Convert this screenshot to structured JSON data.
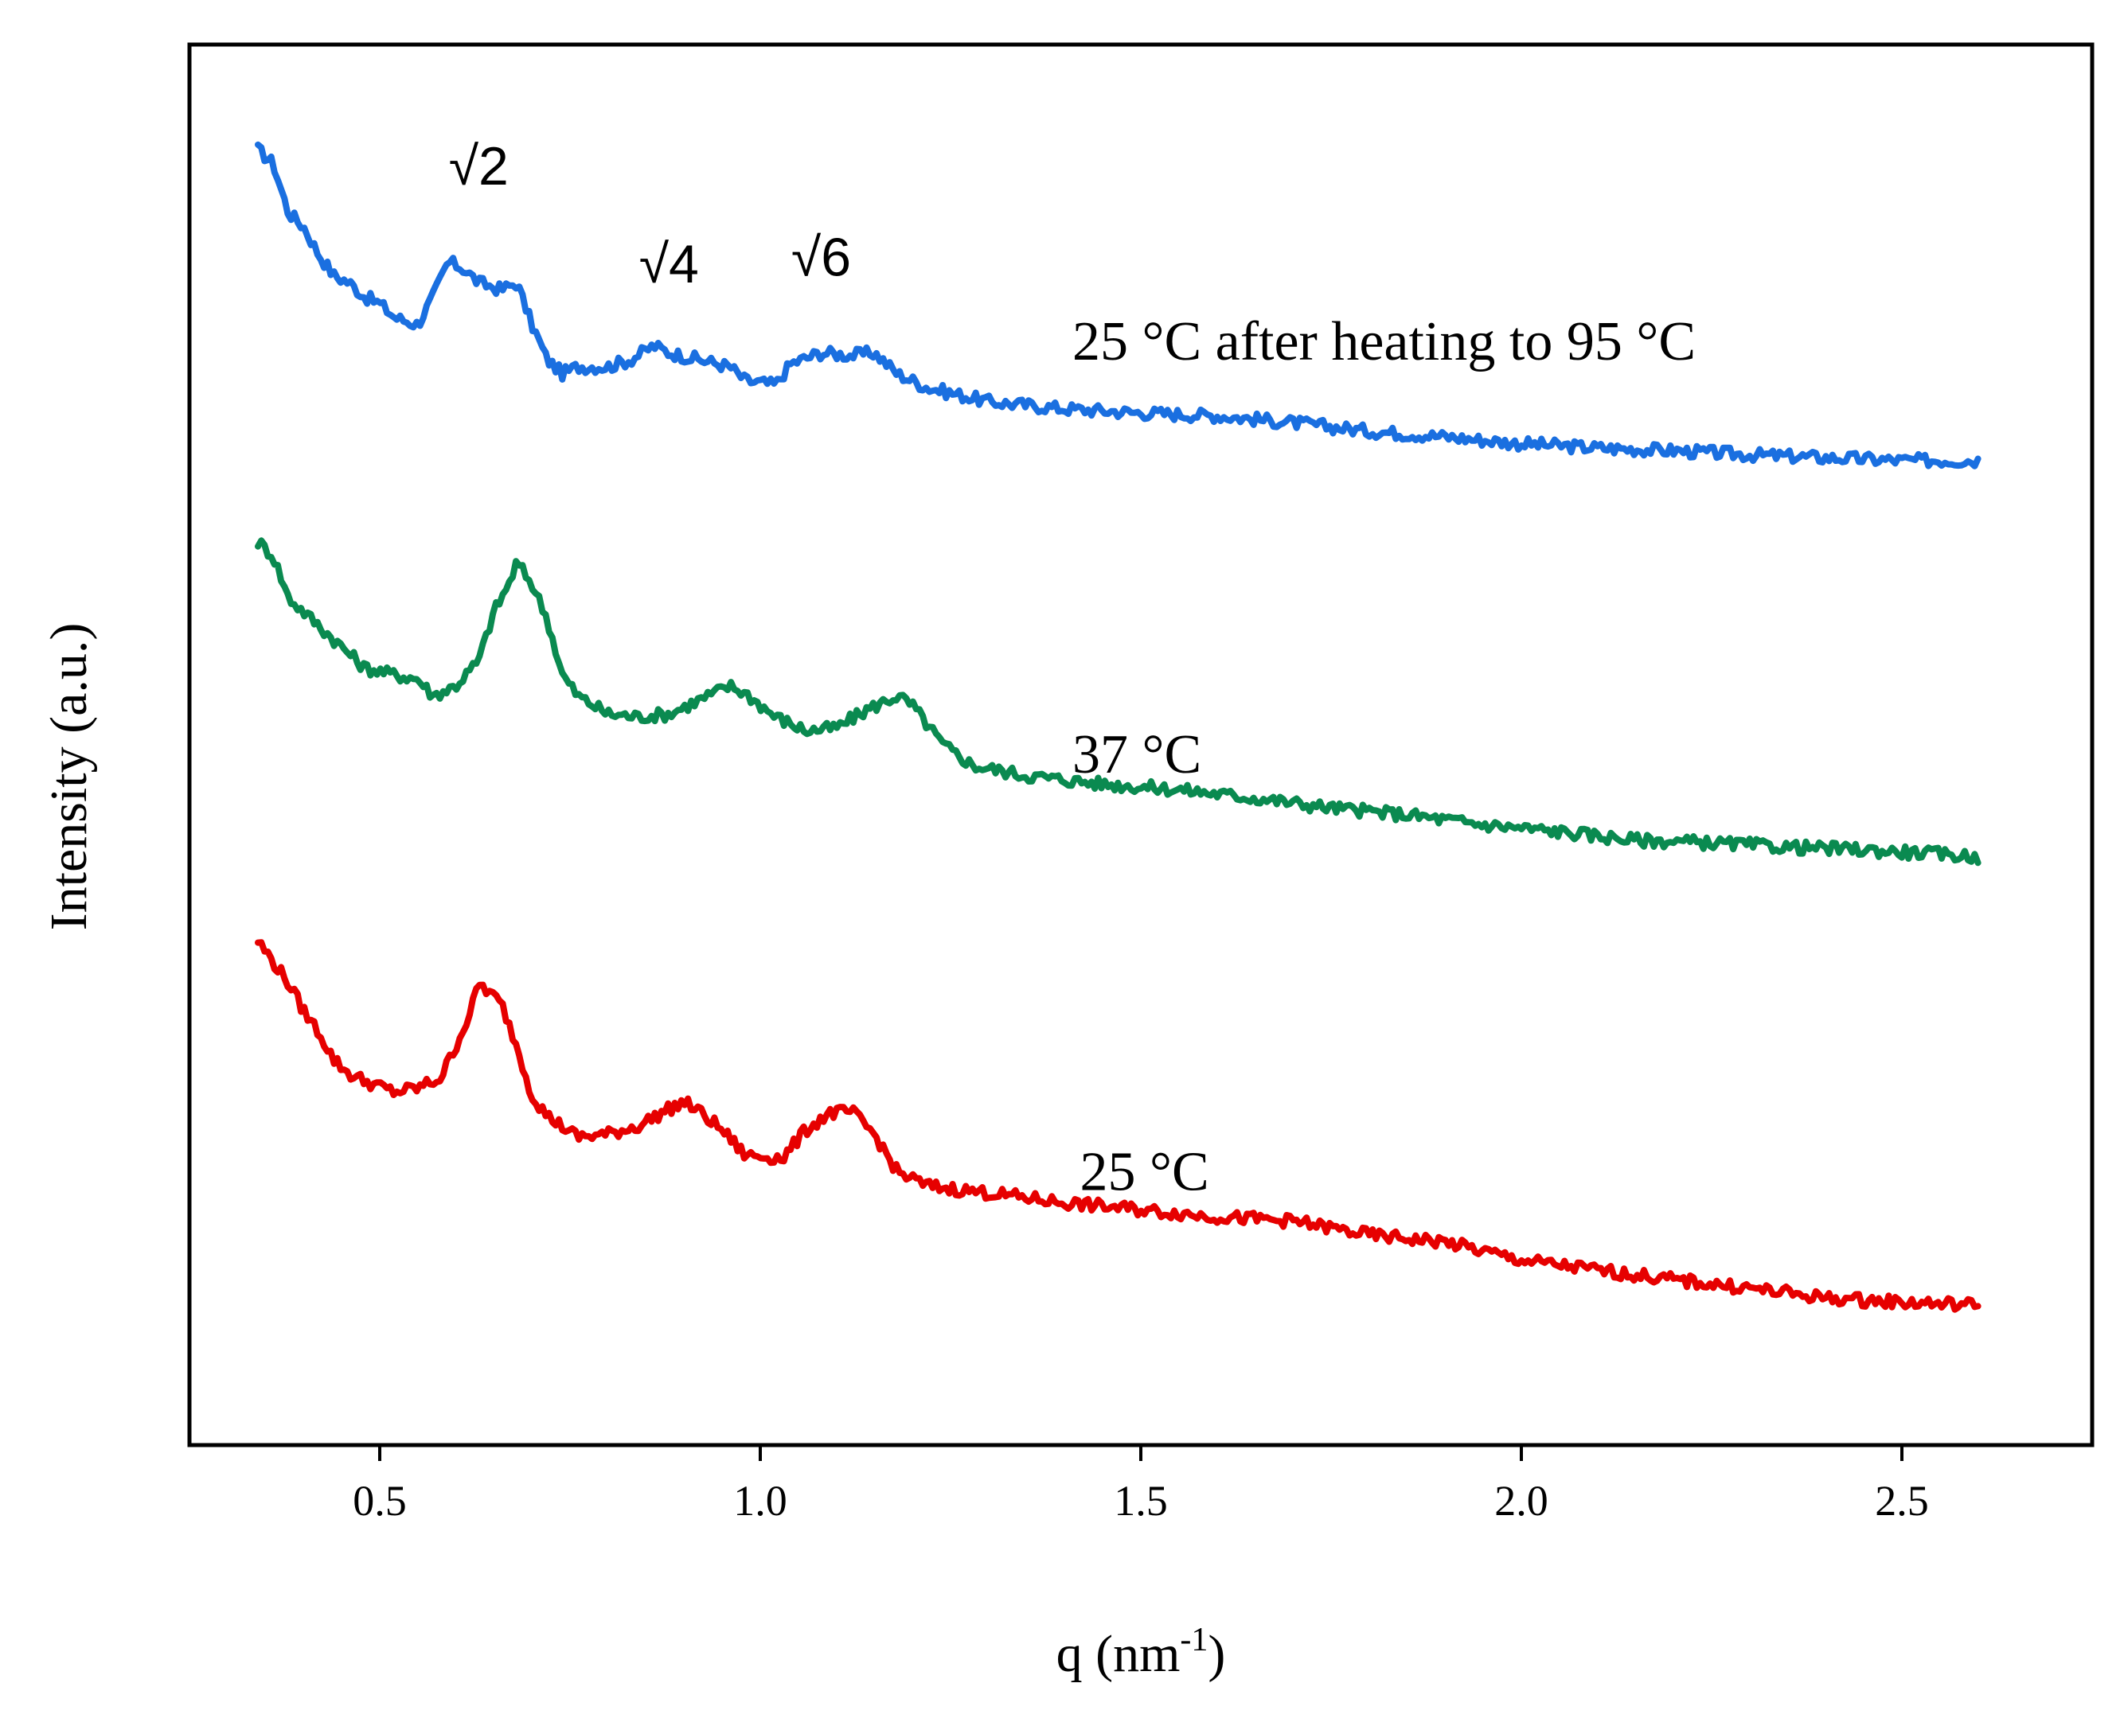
{
  "chart_data": {
    "type": "line",
    "title": "",
    "xlabel_base": "q (nm",
    "xlabel_sup": "-1",
    "xlabel_tail": ")",
    "ylabel": "Intensity (a.u.)",
    "xlim": [
      0.25,
      2.75
    ],
    "ylim": [
      0,
      10
    ],
    "xticks": [
      0.5,
      1.0,
      1.5,
      2.0,
      2.5
    ],
    "xtick_labels": [
      "0.5",
      "1.0",
      "1.5",
      "2.0",
      "2.5"
    ],
    "yticks": [],
    "grid": false,
    "series": [
      {
        "name": "25 °C after heating to 95 °C",
        "color": "#1a6fe0",
        "points": [
          [
            0.34,
            9.25
          ],
          [
            0.36,
            9.15
          ],
          [
            0.38,
            8.8
          ],
          [
            0.4,
            8.7
          ],
          [
            0.42,
            8.5
          ],
          [
            0.44,
            8.35
          ],
          [
            0.46,
            8.3
          ],
          [
            0.48,
            8.2
          ],
          [
            0.5,
            8.15
          ],
          [
            0.52,
            8.05
          ],
          [
            0.55,
            8.0
          ],
          [
            0.57,
            8.2
          ],
          [
            0.59,
            8.45
          ],
          [
            0.61,
            8.4
          ],
          [
            0.63,
            8.3
          ],
          [
            0.66,
            8.25
          ],
          [
            0.68,
            8.3
          ],
          [
            0.7,
            8.0
          ],
          [
            0.72,
            7.75
          ],
          [
            0.74,
            7.65
          ],
          [
            0.76,
            7.7
          ],
          [
            0.8,
            7.7
          ],
          [
            0.83,
            7.75
          ],
          [
            0.86,
            7.85
          ],
          [
            0.88,
            7.8
          ],
          [
            0.92,
            7.75
          ],
          [
            0.96,
            7.7
          ],
          [
            0.98,
            7.6
          ],
          [
            1.02,
            7.57
          ],
          [
            1.04,
            7.72
          ],
          [
            1.08,
            7.8
          ],
          [
            1.12,
            7.78
          ],
          [
            1.15,
            7.8
          ],
          [
            1.18,
            7.65
          ],
          [
            1.22,
            7.55
          ],
          [
            1.26,
            7.5
          ],
          [
            1.3,
            7.45
          ],
          [
            1.4,
            7.4
          ],
          [
            1.5,
            7.37
          ],
          [
            1.6,
            7.35
          ],
          [
            1.7,
            7.3
          ],
          [
            1.8,
            7.24
          ],
          [
            1.9,
            7.2
          ],
          [
            2.0,
            7.15
          ],
          [
            2.1,
            7.12
          ],
          [
            2.2,
            7.1
          ],
          [
            2.3,
            7.07
          ],
          [
            2.4,
            7.05
          ],
          [
            2.5,
            7.03
          ],
          [
            2.6,
            7.03
          ]
        ]
      },
      {
        "name": "37 °C",
        "color": "#0a8a50",
        "points": [
          [
            0.34,
            6.45
          ],
          [
            0.36,
            6.35
          ],
          [
            0.38,
            6.05
          ],
          [
            0.4,
            5.95
          ],
          [
            0.42,
            5.85
          ],
          [
            0.44,
            5.75
          ],
          [
            0.46,
            5.65
          ],
          [
            0.48,
            5.55
          ],
          [
            0.52,
            5.5
          ],
          [
            0.55,
            5.47
          ],
          [
            0.57,
            5.35
          ],
          [
            0.6,
            5.42
          ],
          [
            0.63,
            5.6
          ],
          [
            0.65,
            5.95
          ],
          [
            0.67,
            6.15
          ],
          [
            0.68,
            6.3
          ],
          [
            0.7,
            6.15
          ],
          [
            0.72,
            5.9
          ],
          [
            0.74,
            5.5
          ],
          [
            0.76,
            5.35
          ],
          [
            0.8,
            5.22
          ],
          [
            0.84,
            5.2
          ],
          [
            0.88,
            5.22
          ],
          [
            0.92,
            5.32
          ],
          [
            0.96,
            5.42
          ],
          [
            0.98,
            5.37
          ],
          [
            1.02,
            5.2
          ],
          [
            1.06,
            5.1
          ],
          [
            1.1,
            5.12
          ],
          [
            1.14,
            5.25
          ],
          [
            1.18,
            5.35
          ],
          [
            1.2,
            5.28
          ],
          [
            1.24,
            5.0
          ],
          [
            1.28,
            4.85
          ],
          [
            1.35,
            4.78
          ],
          [
            1.45,
            4.72
          ],
          [
            1.55,
            4.68
          ],
          [
            1.65,
            4.62
          ],
          [
            1.75,
            4.55
          ],
          [
            1.85,
            4.5
          ],
          [
            1.95,
            4.43
          ],
          [
            2.05,
            4.38
          ],
          [
            2.15,
            4.32
          ],
          [
            2.25,
            4.3
          ],
          [
            2.35,
            4.27
          ],
          [
            2.45,
            4.25
          ],
          [
            2.55,
            4.22
          ],
          [
            2.6,
            4.2
          ]
        ]
      },
      {
        "name": "25 °C",
        "color": "#e60000",
        "points": [
          [
            0.34,
            3.6
          ],
          [
            0.36,
            3.45
          ],
          [
            0.38,
            3.3
          ],
          [
            0.4,
            3.1
          ],
          [
            0.42,
            2.95
          ],
          [
            0.44,
            2.75
          ],
          [
            0.46,
            2.65
          ],
          [
            0.48,
            2.6
          ],
          [
            0.52,
            2.52
          ],
          [
            0.55,
            2.55
          ],
          [
            0.58,
            2.62
          ],
          [
            0.6,
            2.85
          ],
          [
            0.62,
            3.1
          ],
          [
            0.63,
            3.3
          ],
          [
            0.66,
            3.15
          ],
          [
            0.68,
            2.85
          ],
          [
            0.7,
            2.5
          ],
          [
            0.72,
            2.35
          ],
          [
            0.76,
            2.2
          ],
          [
            0.8,
            2.22
          ],
          [
            0.84,
            2.28
          ],
          [
            0.88,
            2.4
          ],
          [
            0.9,
            2.45
          ],
          [
            0.92,
            2.38
          ],
          [
            0.95,
            2.25
          ],
          [
            0.98,
            2.07
          ],
          [
            1.03,
            2.05
          ],
          [
            1.06,
            2.25
          ],
          [
            1.09,
            2.37
          ],
          [
            1.12,
            2.38
          ],
          [
            1.15,
            2.22
          ],
          [
            1.18,
            1.95
          ],
          [
            1.22,
            1.85
          ],
          [
            1.3,
            1.8
          ],
          [
            1.4,
            1.73
          ],
          [
            1.5,
            1.68
          ],
          [
            1.6,
            1.63
          ],
          [
            1.7,
            1.6
          ],
          [
            1.8,
            1.5
          ],
          [
            1.9,
            1.45
          ],
          [
            2.0,
            1.32
          ],
          [
            2.1,
            1.25
          ],
          [
            2.2,
            1.18
          ],
          [
            2.3,
            1.12
          ],
          [
            2.4,
            1.05
          ],
          [
            2.5,
            1.02
          ],
          [
            2.6,
            1.0
          ]
        ]
      }
    ],
    "annotations": [
      {
        "text": "√2",
        "x": 0.63,
        "y": 9.0
      },
      {
        "text": "√4",
        "x": 0.88,
        "y": 8.3
      },
      {
        "text": "√6",
        "x": 1.08,
        "y": 8.35
      }
    ],
    "series_labels": [
      {
        "text": "25 °C after heating to 95 °C",
        "x": 1.41,
        "y": 7.75
      },
      {
        "text": "37 °C",
        "x": 1.41,
        "y": 4.8
      },
      {
        "text": "25 °C",
        "x": 1.42,
        "y": 1.82
      }
    ]
  }
}
